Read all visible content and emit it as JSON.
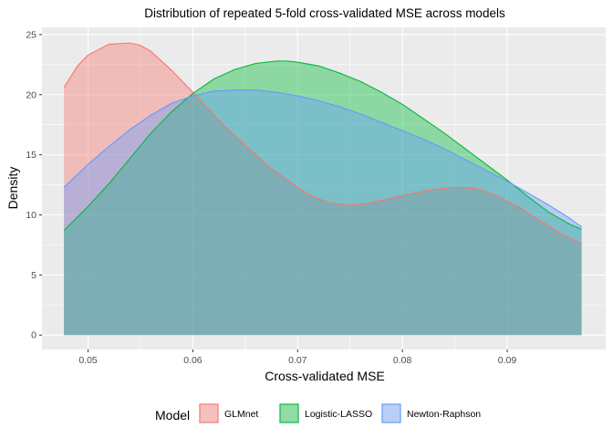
{
  "chart_data": {
    "type": "area",
    "title": "Distribution of repeated 5-fold cross-validated MSE across models",
    "xlabel": "Cross-validated MSE",
    "ylabel": "Density",
    "xlim": [
      0.0456,
      0.0994
    ],
    "ylim": [
      -1.2,
      25.6
    ],
    "x_ticks": [
      0.05,
      0.06,
      0.07,
      0.08,
      0.09
    ],
    "x_tick_labels": [
      "0.05",
      "0.06",
      "0.07",
      "0.08",
      "0.09"
    ],
    "y_ticks": [
      0,
      5,
      10,
      15,
      20,
      25
    ],
    "y_tick_labels": [
      "0",
      "5",
      "10",
      "15",
      "20",
      "25"
    ],
    "grid": true,
    "legend": {
      "title": "Model",
      "placement": "bottom"
    },
    "series": [
      {
        "name": "GLMnet",
        "color": "#F8766D",
        "x": [
          0.0477,
          0.049,
          0.05,
          0.052,
          0.054,
          0.055,
          0.056,
          0.058,
          0.06,
          0.0615,
          0.063,
          0.065,
          0.067,
          0.069,
          0.071,
          0.073,
          0.075,
          0.077,
          0.079,
          0.081,
          0.083,
          0.085,
          0.087,
          0.089,
          0.091,
          0.093,
          0.095,
          0.0971
        ],
        "y": [
          20.6,
          22.4,
          23.3,
          24.2,
          24.3,
          24.1,
          23.6,
          22.0,
          20.2,
          18.8,
          17.4,
          15.8,
          14.2,
          12.9,
          11.7,
          11.0,
          10.8,
          11.0,
          11.4,
          11.8,
          12.1,
          12.3,
          12.2,
          11.6,
          10.7,
          9.6,
          8.5,
          7.6
        ]
      },
      {
        "name": "Logistic-LASSO",
        "color": "#00BA38",
        "x": [
          0.0477,
          0.05,
          0.052,
          0.054,
          0.056,
          0.058,
          0.06,
          0.062,
          0.064,
          0.066,
          0.068,
          0.069,
          0.07,
          0.072,
          0.074,
          0.076,
          0.078,
          0.08,
          0.082,
          0.084,
          0.086,
          0.088,
          0.09,
          0.092,
          0.094,
          0.096,
          0.0971
        ],
        "y": [
          8.7,
          10.7,
          12.6,
          14.7,
          16.8,
          18.6,
          20.1,
          21.3,
          22.1,
          22.6,
          22.8,
          22.8,
          22.7,
          22.4,
          21.8,
          21.1,
          20.2,
          19.2,
          18.0,
          16.8,
          15.5,
          14.2,
          12.9,
          11.5,
          10.2,
          9.2,
          8.8
        ]
      },
      {
        "name": "Newton-Raphson",
        "color": "#619CFF",
        "x": [
          0.0477,
          0.05,
          0.052,
          0.054,
          0.056,
          0.058,
          0.06,
          0.062,
          0.064,
          0.065,
          0.066,
          0.068,
          0.07,
          0.072,
          0.074,
          0.076,
          0.078,
          0.08,
          0.082,
          0.084,
          0.086,
          0.088,
          0.09,
          0.092,
          0.094,
          0.096,
          0.0971
        ],
        "y": [
          12.3,
          14.2,
          15.7,
          17.1,
          18.3,
          19.3,
          19.9,
          20.3,
          20.4,
          20.4,
          20.4,
          20.2,
          19.9,
          19.5,
          19.0,
          18.4,
          17.7,
          17.0,
          16.3,
          15.5,
          14.6,
          13.7,
          12.8,
          11.8,
          10.8,
          9.7,
          9.0
        ]
      }
    ]
  }
}
